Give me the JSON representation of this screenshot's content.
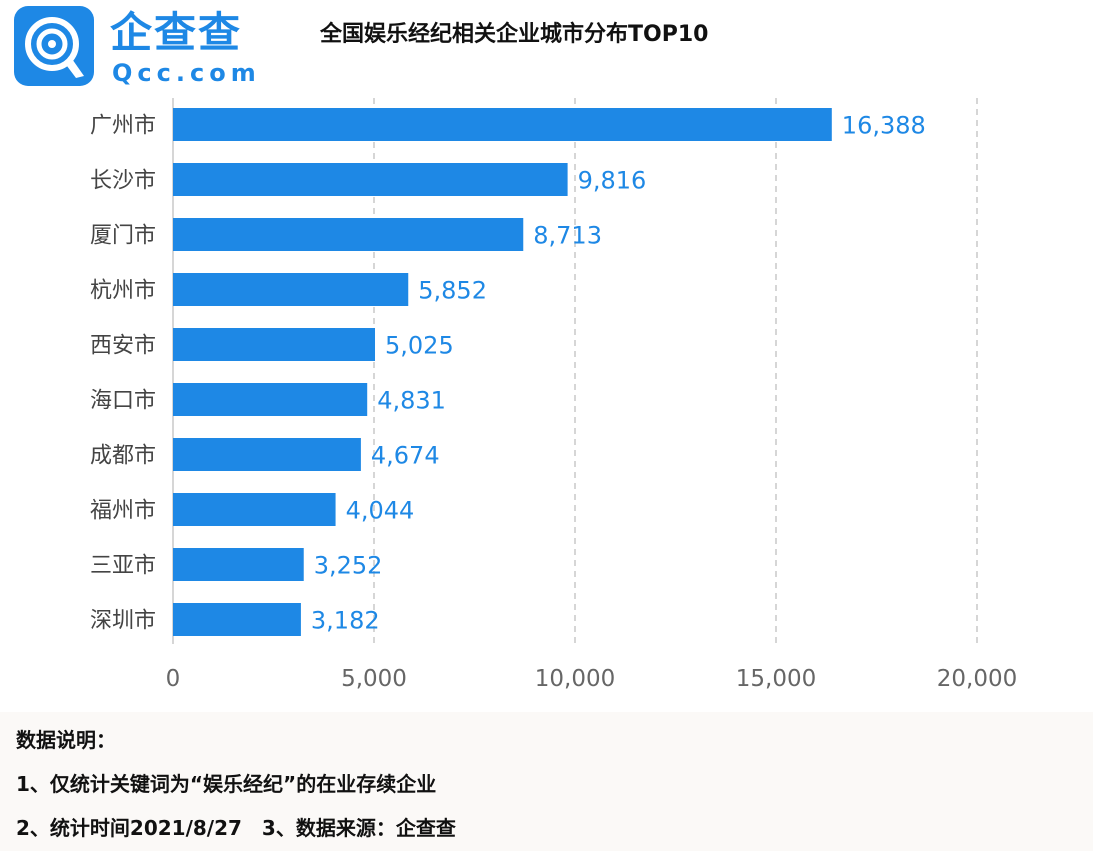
{
  "brand": {
    "name": "企查查",
    "domain": "Qcc.com"
  },
  "colors": {
    "bar": "#1e88e5",
    "value_label": "#1e88e5",
    "category_label": "#444444",
    "tick_label": "#666666",
    "grid": "#c8c8c8"
  },
  "chart_data": {
    "type": "bar",
    "orientation": "horizontal",
    "title": "全国娱乐经纪相关企业城市分布TOP10",
    "categories": [
      "广州市",
      "长沙市",
      "厦门市",
      "杭州市",
      "西安市",
      "海口市",
      "成都市",
      "福州市",
      "三亚市",
      "深圳市"
    ],
    "values": [
      16388,
      9816,
      8713,
      5852,
      5025,
      4831,
      4674,
      4044,
      3252,
      3182
    ],
    "value_labels": [
      "16,388",
      "9,816",
      "8,713",
      "5,852",
      "5,025",
      "4,831",
      "4,674",
      "4,044",
      "3,252",
      "3,182"
    ],
    "xlim": [
      0,
      20000
    ],
    "xticks": [
      0,
      5000,
      10000,
      15000,
      20000
    ],
    "xtick_labels": [
      "0",
      "5,000",
      "10,000",
      "15,000",
      "20,000"
    ],
    "xlabel": "",
    "ylabel": "",
    "grid": "vertical dashed"
  },
  "notes": {
    "heading": "数据说明：",
    "line1": "1、仅统计关键词为“娱乐经纪”的在业存续企业",
    "line2": "2、统计时间2021/8/27　3、数据来源：企查查"
  }
}
